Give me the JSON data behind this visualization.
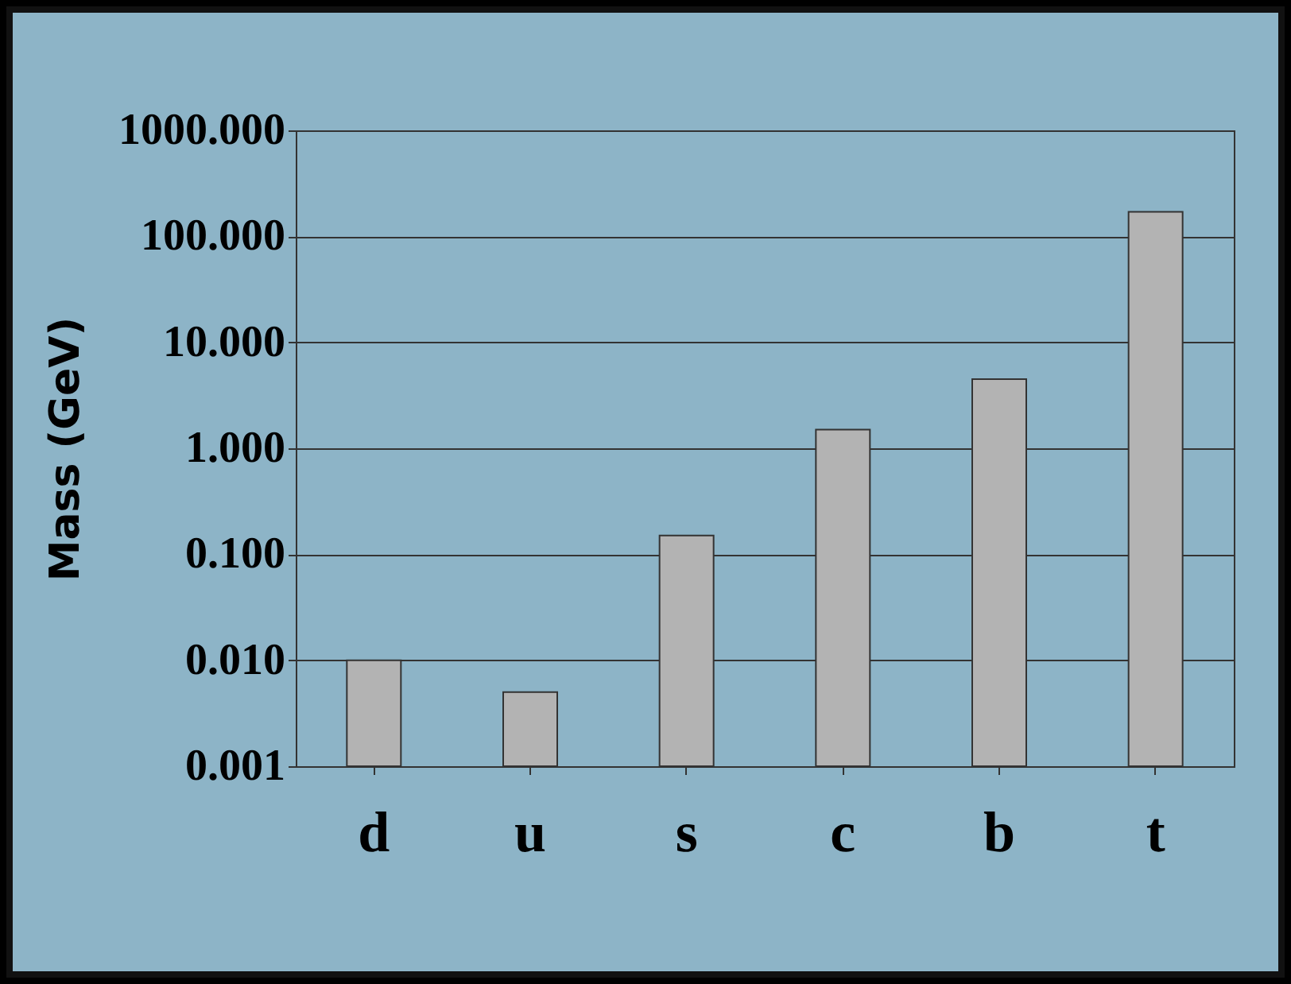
{
  "chart_data": {
    "type": "bar",
    "ylabel": "Mass (GeV)",
    "categories": [
      "d",
      "u",
      "s",
      "c",
      "b",
      "t"
    ],
    "values": [
      0.01,
      0.005,
      0.15,
      1.5,
      4.5,
      170
    ],
    "color": "#b3b3b3",
    "log": "y",
    "grid": "y",
    "ylim": [
      0.001,
      1000
    ],
    "yticks": [
      {
        "value": 0.001,
        "label": "0.001"
      },
      {
        "value": 0.01,
        "label": "0.010"
      },
      {
        "value": 0.1,
        "label": "0.100"
      },
      {
        "value": 1,
        "label": "1.000"
      },
      {
        "value": 10,
        "label": "10.000"
      },
      {
        "value": 100,
        "label": "100.000"
      },
      {
        "value": 1000,
        "label": "1000.000"
      }
    ]
  }
}
